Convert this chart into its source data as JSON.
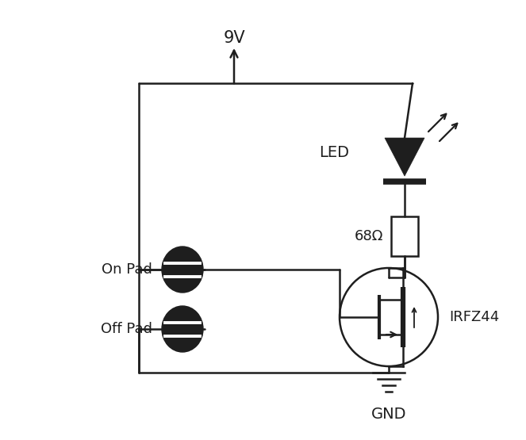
{
  "bg_color": "#ffffff",
  "lc": "#1e1e1e",
  "lw": 1.8,
  "supply_label": "9V",
  "gnd_label": "GND",
  "resistor_label": "68Ω",
  "led_label": "LED",
  "mosfet_label": "IRFZ44",
  "onpad_label": "On Pad",
  "offpad_label": "Off Pad",
  "fig_width": 6.63,
  "fig_height": 5.55,
  "dpi": 100,
  "xlim": [
    0,
    663
  ],
  "ylim": [
    0,
    555
  ]
}
